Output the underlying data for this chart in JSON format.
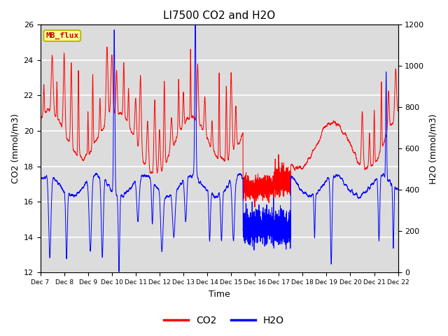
{
  "title": "LI7500 CO2 and H2O",
  "xlabel": "Time",
  "ylabel_left": "CO2 (mmol/m3)",
  "ylabel_right": "H2O (mmol/m3)",
  "co2_ylim": [
    12,
    26
  ],
  "h2o_ylim": [
    0,
    1200
  ],
  "co2_yticks": [
    12,
    14,
    16,
    18,
    20,
    22,
    24,
    26
  ],
  "h2o_yticks": [
    0,
    200,
    400,
    600,
    800,
    1000,
    1200
  ],
  "x_tick_labels": [
    "Dec 7",
    "Dec 8",
    "Dec 9",
    "Dec 10",
    "Dec 11",
    "Dec 12",
    "Dec 13",
    "Dec 14",
    "Dec 15",
    "Dec 16",
    "Dec 17",
    "Dec 18",
    "Dec 19",
    "Dec 20",
    "Dec 21",
    "Dec 22"
  ],
  "co2_color": "#FF0000",
  "h2o_color": "#0000FF",
  "background_color": "#FFFFFF",
  "plot_bg_color": "#DCDCDC",
  "grid_color": "#FFFFFF",
  "text_box_label": "MB_flux",
  "text_box_facecolor": "#FFFF99",
  "text_box_edgecolor": "#BBBB00",
  "text_box_textcolor": "#CC0000",
  "legend_co2_label": "CO2",
  "legend_h2o_label": "H2O",
  "days": 15,
  "seed": 77
}
